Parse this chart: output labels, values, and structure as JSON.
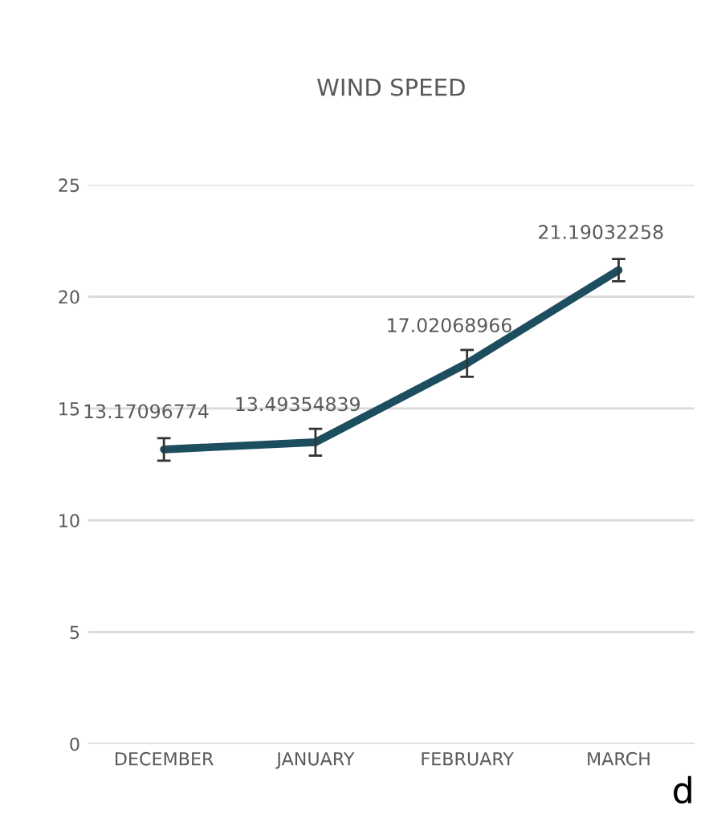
{
  "chart_data": {
    "type": "line",
    "title": "WIND SPEED",
    "categories": [
      "DECEMBER",
      "JANUARY",
      "FEBRUARY",
      "MARCH"
    ],
    "series": [
      {
        "color": "#1d4e5f",
        "values": [
          13.17096774,
          13.49354839,
          17.02068966,
          21.19032258
        ],
        "errors": [
          0.5,
          0.6,
          0.6,
          0.5
        ]
      }
    ],
    "ylim": [
      0,
      25
    ],
    "yticks": [
      0,
      5,
      10,
      15,
      20,
      25
    ],
    "grid": "y",
    "data_labels": true,
    "marker": "none",
    "line_style": "solid",
    "annotations": [
      "d"
    ]
  }
}
